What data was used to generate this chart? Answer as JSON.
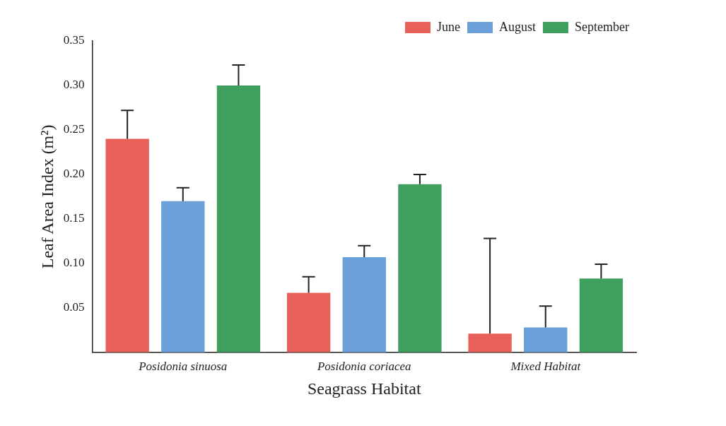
{
  "chart_data": {
    "type": "bar",
    "xlabel": "Seagrass Habitat",
    "ylabel": "Leaf Area Index (m²)",
    "categories": [
      "Posidonia sinuosa",
      "Posidonia coriacea",
      "Mixed Habitat"
    ],
    "series": [
      {
        "name": "June",
        "color": "#e8605a",
        "values": [
          0.24,
          0.067,
          0.021
        ],
        "errors": [
          [
            0.24,
            0.272
          ],
          [
            0.067,
            0.085
          ],
          [
            0.021,
            0.128
          ]
        ]
      },
      {
        "name": "August",
        "color": "#6a9fd8",
        "values": [
          0.17,
          0.107,
          0.028
        ],
        "errors": [
          [
            0.17,
            0.185
          ],
          [
            0.107,
            0.12
          ],
          [
            0.028,
            0.052
          ]
        ]
      },
      {
        "name": "September",
        "color": "#3f9f5f",
        "values": [
          0.3,
          0.189,
          0.083
        ],
        "errors": [
          [
            0.3,
            0.323
          ],
          [
            0.189,
            0.2
          ],
          [
            0.083,
            0.099
          ]
        ]
      }
    ],
    "ylim": [
      0,
      0.35
    ],
    "yticks": [
      0.05,
      {
        "value": 0.1,
        "label": "0.10"
      },
      0.15,
      {
        "value": 0.2,
        "label": "0.20"
      },
      0.25,
      {
        "value": 0.3,
        "label": "0.30"
      },
      0.35
    ],
    "grid": false,
    "legend": "top right"
  }
}
